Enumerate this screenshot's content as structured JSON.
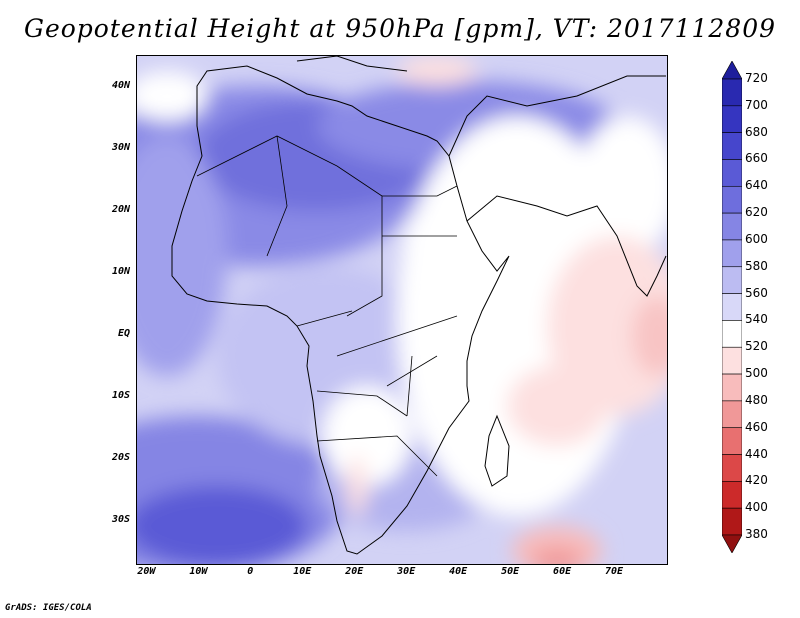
{
  "title": "Geopotential Height at 950hPa [gpm], VT: 2017112809",
  "credit": "GrADS: IGES/COLA",
  "lat_labels": [
    "40N",
    "30N",
    "20N",
    "10N",
    "EQ",
    "10S",
    "20S",
    "30S"
  ],
  "lat_values": [
    40,
    30,
    20,
    10,
    0,
    -10,
    -20,
    -30
  ],
  "lon_labels": [
    "20W",
    "10W",
    "0",
    "10E",
    "20E",
    "30E",
    "40E",
    "50E",
    "60E",
    "70E"
  ],
  "lon_values": [
    -20,
    -10,
    0,
    10,
    20,
    30,
    40,
    50,
    60,
    70
  ],
  "map_extent": {
    "lon_min": -22,
    "lon_max": 80,
    "lat_min": -37,
    "lat_max": 45
  },
  "colorbar": {
    "labels": [
      "720",
      "700",
      "680",
      "660",
      "640",
      "620",
      "600",
      "580",
      "560",
      "540",
      "520",
      "500",
      "480",
      "460",
      "440",
      "420",
      "400",
      "380"
    ],
    "colors": [
      "#1e1e9c",
      "#2929b0",
      "#3535c0",
      "#4646cc",
      "#5a5ad6",
      "#6e6edd",
      "#8585e4",
      "#a0a0ec",
      "#bcbcf2",
      "#d8d8f8",
      "#ffffff",
      "#fde0e0",
      "#f8bcbc",
      "#f09898",
      "#e87070",
      "#dc4848",
      "#cc2a2a",
      "#b01818",
      "#901010"
    ]
  }
}
